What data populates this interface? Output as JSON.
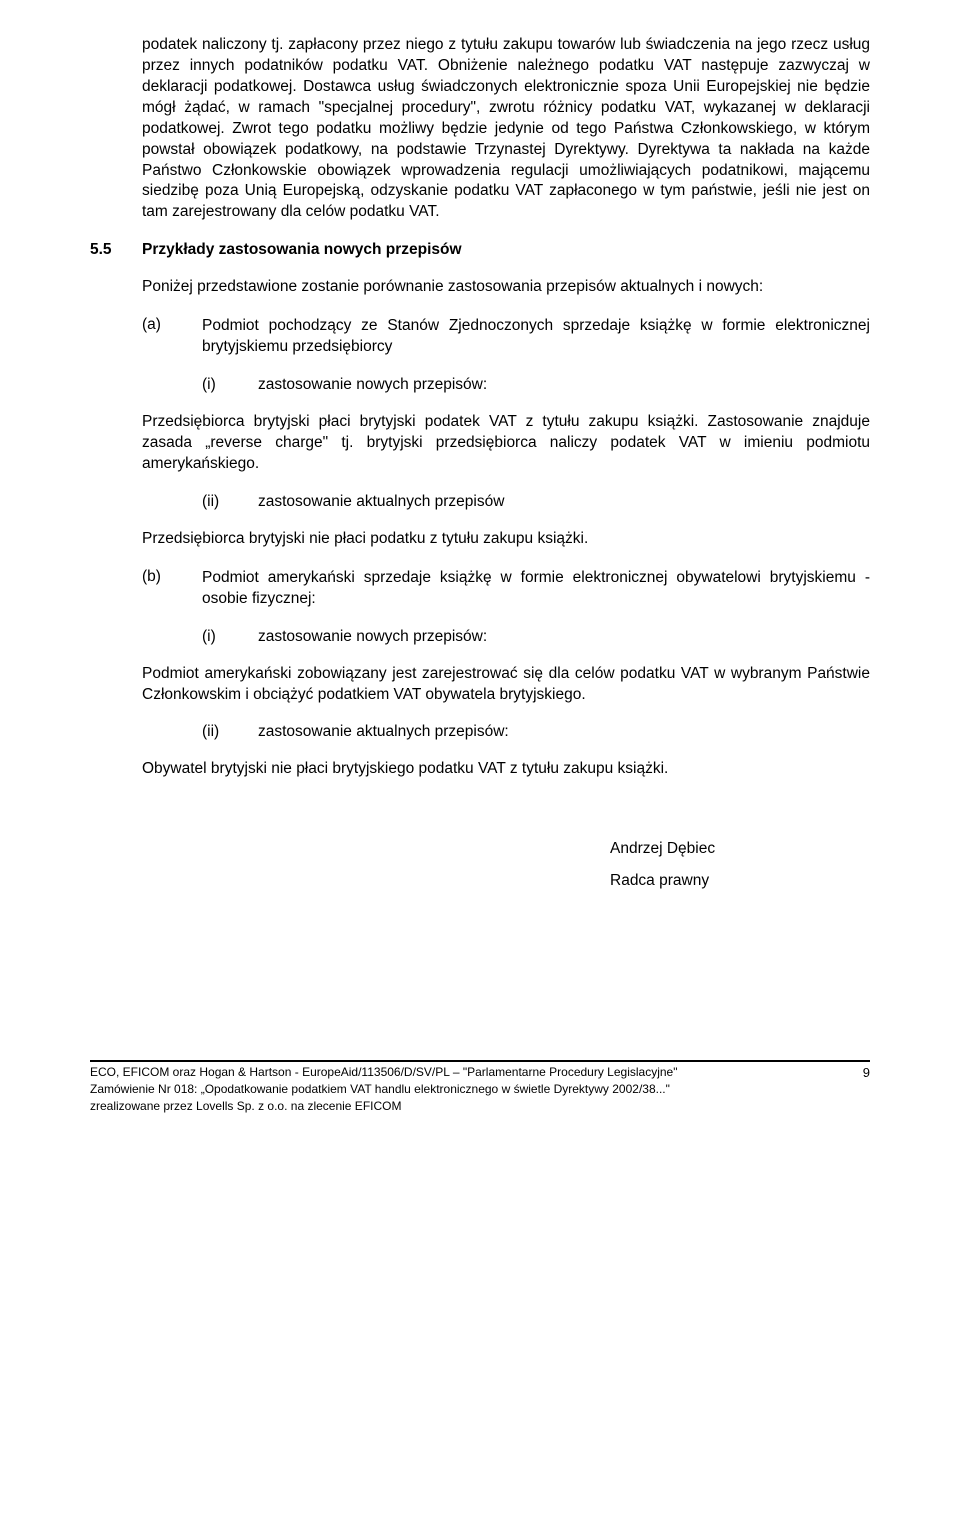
{
  "para1": "podatek naliczony tj. zapłacony przez niego z tytułu zakupu towarów lub świadczenia na jego rzecz usług przez innych podatników podatku VAT. Obniżenie należnego podatku VAT następuje zazwyczaj w deklaracji podatkowej. Dostawca usług świadczonych elektronicznie spoza Unii Europejskiej nie będzie mógł żądać, w ramach \"specjalnej procedury\", zwrotu różnicy podatku VAT, wykazanej w deklaracji podatkowej. Zwrot tego podatku możliwy będzie jedynie od tego Państwa Członkowskiego, w którym powstał obowiązek podatkowy, na podstawie Trzynastej Dyrektywy. Dyrektywa ta nakłada na każde Państwo Członkowskie obowiązek wprowadzenia regulacji umożliwiających podatnikowi, mającemu siedzibę poza Unią Europejską, odzyskanie podatku VAT zapłaconego w tym państwie, jeśli nie jest on tam zarejestrowany dla celów podatku VAT.",
  "section": {
    "num": "5.5",
    "title": "Przykłady zastosowania nowych przepisów"
  },
  "intro": "Poniżej przedstawione zostanie porównanie zastosowania przepisów aktualnych i nowych:",
  "a": {
    "label": "(a)",
    "text": "Podmiot pochodzący ze Stanów Zjednoczonych sprzedaje książkę w formie elektronicznej brytyjskiemu przedsiębiorcy"
  },
  "a_i": {
    "label": "(i)",
    "text": "zastosowanie nowych przepisów:"
  },
  "a_i_body": "Przedsiębiorca brytyjski płaci brytyjski podatek VAT z tytułu zakupu książki. Zastosowanie znajduje zasada „reverse charge\" tj. brytyjski przedsiębiorca naliczy podatek VAT w imieniu podmiotu amerykańskiego.",
  "a_ii": {
    "label": "(ii)",
    "text": "zastosowanie aktualnych przepisów"
  },
  "a_ii_body": "Przedsiębiorca brytyjski nie płaci podatku z tytułu zakupu książki.",
  "b": {
    "label": "(b)",
    "text": "Podmiot amerykański sprzedaje książkę w formie elektronicznej obywatelowi brytyjskiemu - osobie fizycznej:"
  },
  "b_i": {
    "label": "(i)",
    "text": "zastosowanie nowych przepisów:"
  },
  "b_i_body": "Podmiot amerykański zobowiązany jest zarejestrować się dla celów podatku VAT w wybranym Państwie Członkowskim i obciążyć podatkiem VAT obywatela brytyjskiego.",
  "b_ii": {
    "label": "(ii)",
    "text": "zastosowanie aktualnych przepisów:"
  },
  "b_ii_body": "Obywatel brytyjski nie płaci brytyjskiego podatku VAT z tytułu zakupu książki.",
  "signature": {
    "name": "Andrzej Dębiec",
    "role": "Radca prawny"
  },
  "footer": {
    "line1": "ECO, EFICOM oraz Hogan & Hartson - EuropeAid/113506/D/SV/PL – \"Parlamentarne Procedury Legislacyjne\"",
    "line2": "Zamówienie Nr 018: „Opodatkowanie podatkiem VAT handlu elektronicznego w świetle Dyrektywy 2002/38...\"",
    "line3": "zrealizowane przez Lovells Sp. z o.o. na zlecenie EFICOM",
    "page": "9"
  }
}
